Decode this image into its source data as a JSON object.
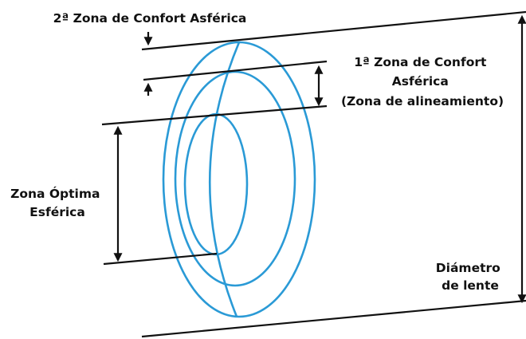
{
  "labels": [
    {
      "lines": [
        "2ª Zona de Confort Asférica"
      ]
    },
    {
      "lines": [
        "1ª Zona de Confort",
        "Asférica",
        "(Zona de alineamiento)"
      ]
    },
    {
      "lines": [
        "Zona Óptima",
        "Esférica"
      ]
    },
    {
      "lines": [
        "Diámetro",
        "de lente"
      ]
    }
  ]
}
